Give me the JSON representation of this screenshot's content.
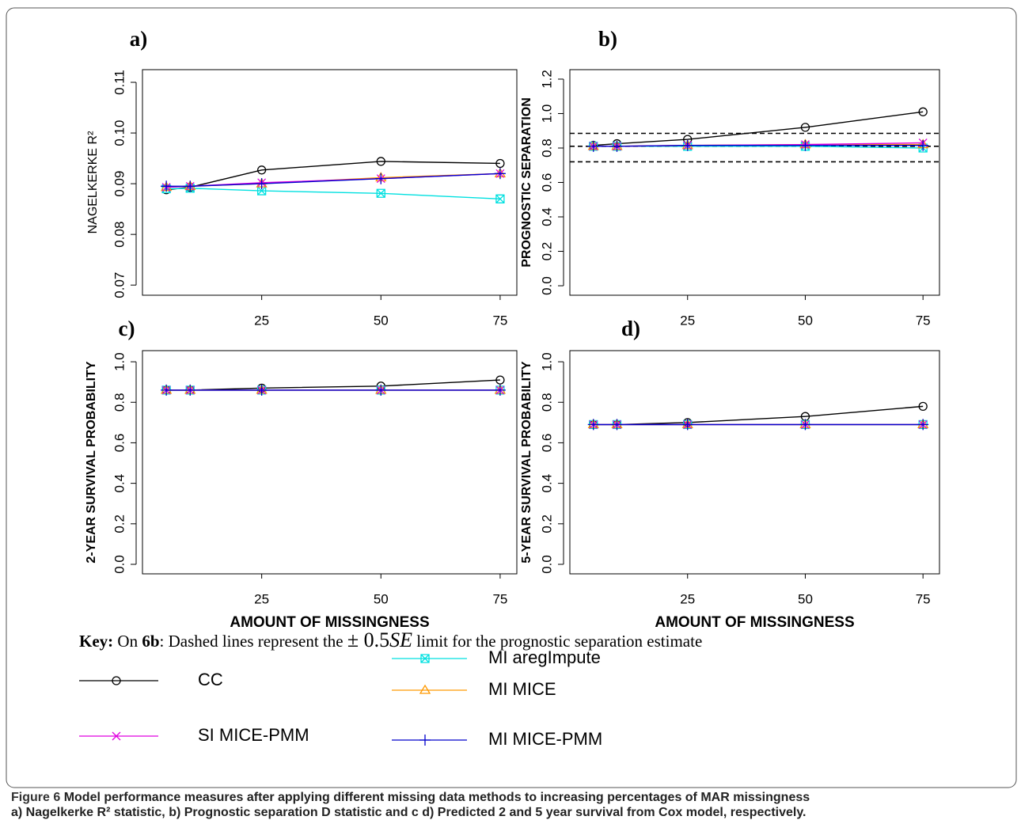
{
  "chart_data": [
    {
      "type": "line",
      "title": "a)",
      "y_label": "NAGELKERKE R²",
      "x": [
        5,
        10,
        25,
        50,
        75
      ],
      "xlim": [
        0,
        78.5
      ],
      "xticks": [
        25,
        50,
        75
      ],
      "ylim": [
        0.068,
        0.1125
      ],
      "yticks": [
        0.07,
        0.08,
        0.09,
        0.1,
        0.11
      ],
      "series": [
        {
          "name": "CC",
          "color": "#000000",
          "marker": "circle",
          "values": [
            0.0888,
            0.0893,
            0.0927,
            0.0944,
            0.094
          ]
        },
        {
          "name": "MI aregImpute",
          "color": "#00e0e0",
          "marker": "boxx",
          "values": [
            0.089,
            0.0891,
            0.0886,
            0.0881,
            0.087
          ]
        },
        {
          "name": "MI MICE",
          "color": "#ff9900",
          "marker": "triangle",
          "values": [
            0.0893,
            0.0895,
            0.09,
            0.0912,
            0.092
          ]
        },
        {
          "name": "SI MICE-PMM",
          "color": "#e000e0",
          "marker": "x",
          "values": [
            0.0893,
            0.0895,
            0.0902,
            0.091,
            0.092
          ]
        },
        {
          "name": "MI MICE-PMM",
          "color": "#0000cc",
          "marker": "plus",
          "values": [
            0.0895,
            0.0895,
            0.09,
            0.091,
            0.092
          ]
        }
      ]
    },
    {
      "type": "line",
      "title": "b)",
      "y_label": "PROGNOSTIC SEPARATION",
      "x": [
        5,
        10,
        25,
        50,
        75
      ],
      "xlim": [
        0,
        78.5
      ],
      "xticks": [
        25,
        50,
        75
      ],
      "ylim": [
        -0.055,
        1.255
      ],
      "yticks": [
        0.0,
        0.2,
        0.4,
        0.6,
        0.8,
        1.0,
        1.2
      ],
      "reference_lines": [
        0.885,
        0.81,
        0.72
      ],
      "series": [
        {
          "name": "CC",
          "color": "#000000",
          "marker": "circle",
          "values": [
            0.815,
            0.825,
            0.85,
            0.92,
            1.01
          ]
        },
        {
          "name": "MI aregImpute",
          "color": "#00e0e0",
          "marker": "boxx",
          "values": [
            0.81,
            0.81,
            0.81,
            0.81,
            0.8
          ]
        },
        {
          "name": "MI MICE",
          "color": "#ff9900",
          "marker": "triangle",
          "values": [
            0.81,
            0.81,
            0.815,
            0.82,
            0.82
          ]
        },
        {
          "name": "SI MICE-PMM",
          "color": "#e000e0",
          "marker": "x",
          "values": [
            0.81,
            0.81,
            0.815,
            0.82,
            0.83
          ]
        },
        {
          "name": "MI MICE-PMM",
          "color": "#0000cc",
          "marker": "plus",
          "values": [
            0.81,
            0.81,
            0.815,
            0.815,
            0.815
          ]
        }
      ]
    },
    {
      "type": "line",
      "title": "c)",
      "y_label": "2-YEAR SURVIVAL PROBABILITY",
      "x_label": "AMOUNT OF MISSINGNESS",
      "x": [
        5,
        10,
        25,
        50,
        75
      ],
      "xlim": [
        0,
        78.5
      ],
      "xticks": [
        25,
        50,
        75
      ],
      "ylim": [
        -0.047,
        1.055
      ],
      "yticks": [
        0.0,
        0.2,
        0.4,
        0.6,
        0.8,
        1.0
      ],
      "series": [
        {
          "name": "CC",
          "color": "#000000",
          "marker": "circle",
          "values": [
            0.86,
            0.86,
            0.87,
            0.88,
            0.91
          ]
        },
        {
          "name": "MI aregImpute",
          "color": "#00e0e0",
          "marker": "boxx",
          "values": [
            0.86,
            0.86,
            0.86,
            0.86,
            0.86
          ]
        },
        {
          "name": "MI MICE",
          "color": "#ff9900",
          "marker": "triangle",
          "values": [
            0.86,
            0.86,
            0.86,
            0.86,
            0.86
          ]
        },
        {
          "name": "SI MICE-PMM",
          "color": "#e000e0",
          "marker": "x",
          "values": [
            0.86,
            0.86,
            0.86,
            0.86,
            0.86
          ]
        },
        {
          "name": "MI MICE-PMM",
          "color": "#0000cc",
          "marker": "plus",
          "values": [
            0.86,
            0.86,
            0.86,
            0.86,
            0.86
          ]
        }
      ]
    },
    {
      "type": "line",
      "title": "d)",
      "y_label": "5-YEAR SURVIVAL PROBABILITY",
      "x_label": "AMOUNT OF MISSINGNESS",
      "x": [
        5,
        10,
        25,
        50,
        75
      ],
      "xlim": [
        0,
        78.5
      ],
      "xticks": [
        25,
        50,
        75
      ],
      "ylim": [
        -0.047,
        1.055
      ],
      "yticks": [
        0.0,
        0.2,
        0.4,
        0.6,
        0.8,
        1.0
      ],
      "series": [
        {
          "name": "CC",
          "color": "#000000",
          "marker": "circle",
          "values": [
            0.69,
            0.69,
            0.7,
            0.73,
            0.78
          ]
        },
        {
          "name": "MI aregImpute",
          "color": "#00e0e0",
          "marker": "boxx",
          "values": [
            0.69,
            0.69,
            0.69,
            0.69,
            0.69
          ]
        },
        {
          "name": "MI MICE",
          "color": "#ff9900",
          "marker": "triangle",
          "values": [
            0.69,
            0.69,
            0.69,
            0.69,
            0.69
          ]
        },
        {
          "name": "SI MICE-PMM",
          "color": "#e000e0",
          "marker": "x",
          "values": [
            0.69,
            0.69,
            0.69,
            0.69,
            0.69
          ]
        },
        {
          "name": "MI MICE-PMM",
          "color": "#0000cc",
          "marker": "plus",
          "values": [
            0.69,
            0.69,
            0.69,
            0.69,
            0.69
          ]
        }
      ]
    }
  ],
  "key": {
    "label": "Key:",
    "prefix": "On",
    "figure": "6b",
    "text1": ": Dashed lines represent the",
    "formula_sign": "± 0.5",
    "formula_var": "SE",
    "text2": "limit for the prognostic separation estimate"
  },
  "caption": {
    "figure": "Figure 6",
    "line1": "Model performance measures after applying different missing data methods to increasing percentages of MAR missingness",
    "line2": "a) Nagelkerke R² statistic, b) Prognostic separation D statistic and c d) Predicted 2 and 5 year survival from Cox model, respectively."
  }
}
